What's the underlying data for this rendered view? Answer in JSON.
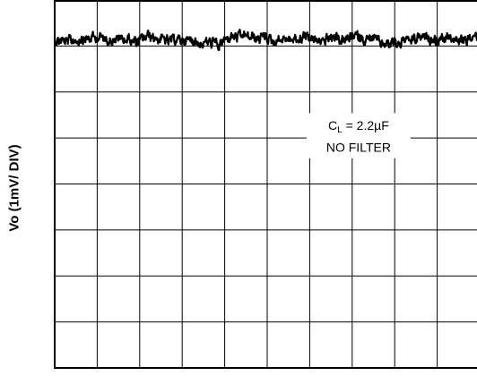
{
  "chart_data": {
    "type": "line",
    "ylabel": "Vo (1mV/ DIV)",
    "xlabel": "",
    "title": "",
    "divisions": {
      "x": 10,
      "y": 8
    },
    "grid": true,
    "trace": {
      "baseline_div": 7.15,
      "noise_pp_div": 0.25,
      "samples": 900
    },
    "annotation": {
      "line1_prefix": "C",
      "line1_sub": "L",
      "line1_value": " = 2.2µF",
      "line2": "NO FILTER"
    },
    "colors": {
      "grid": "#000000",
      "trace": "#000000",
      "background": "#ffffff"
    }
  }
}
